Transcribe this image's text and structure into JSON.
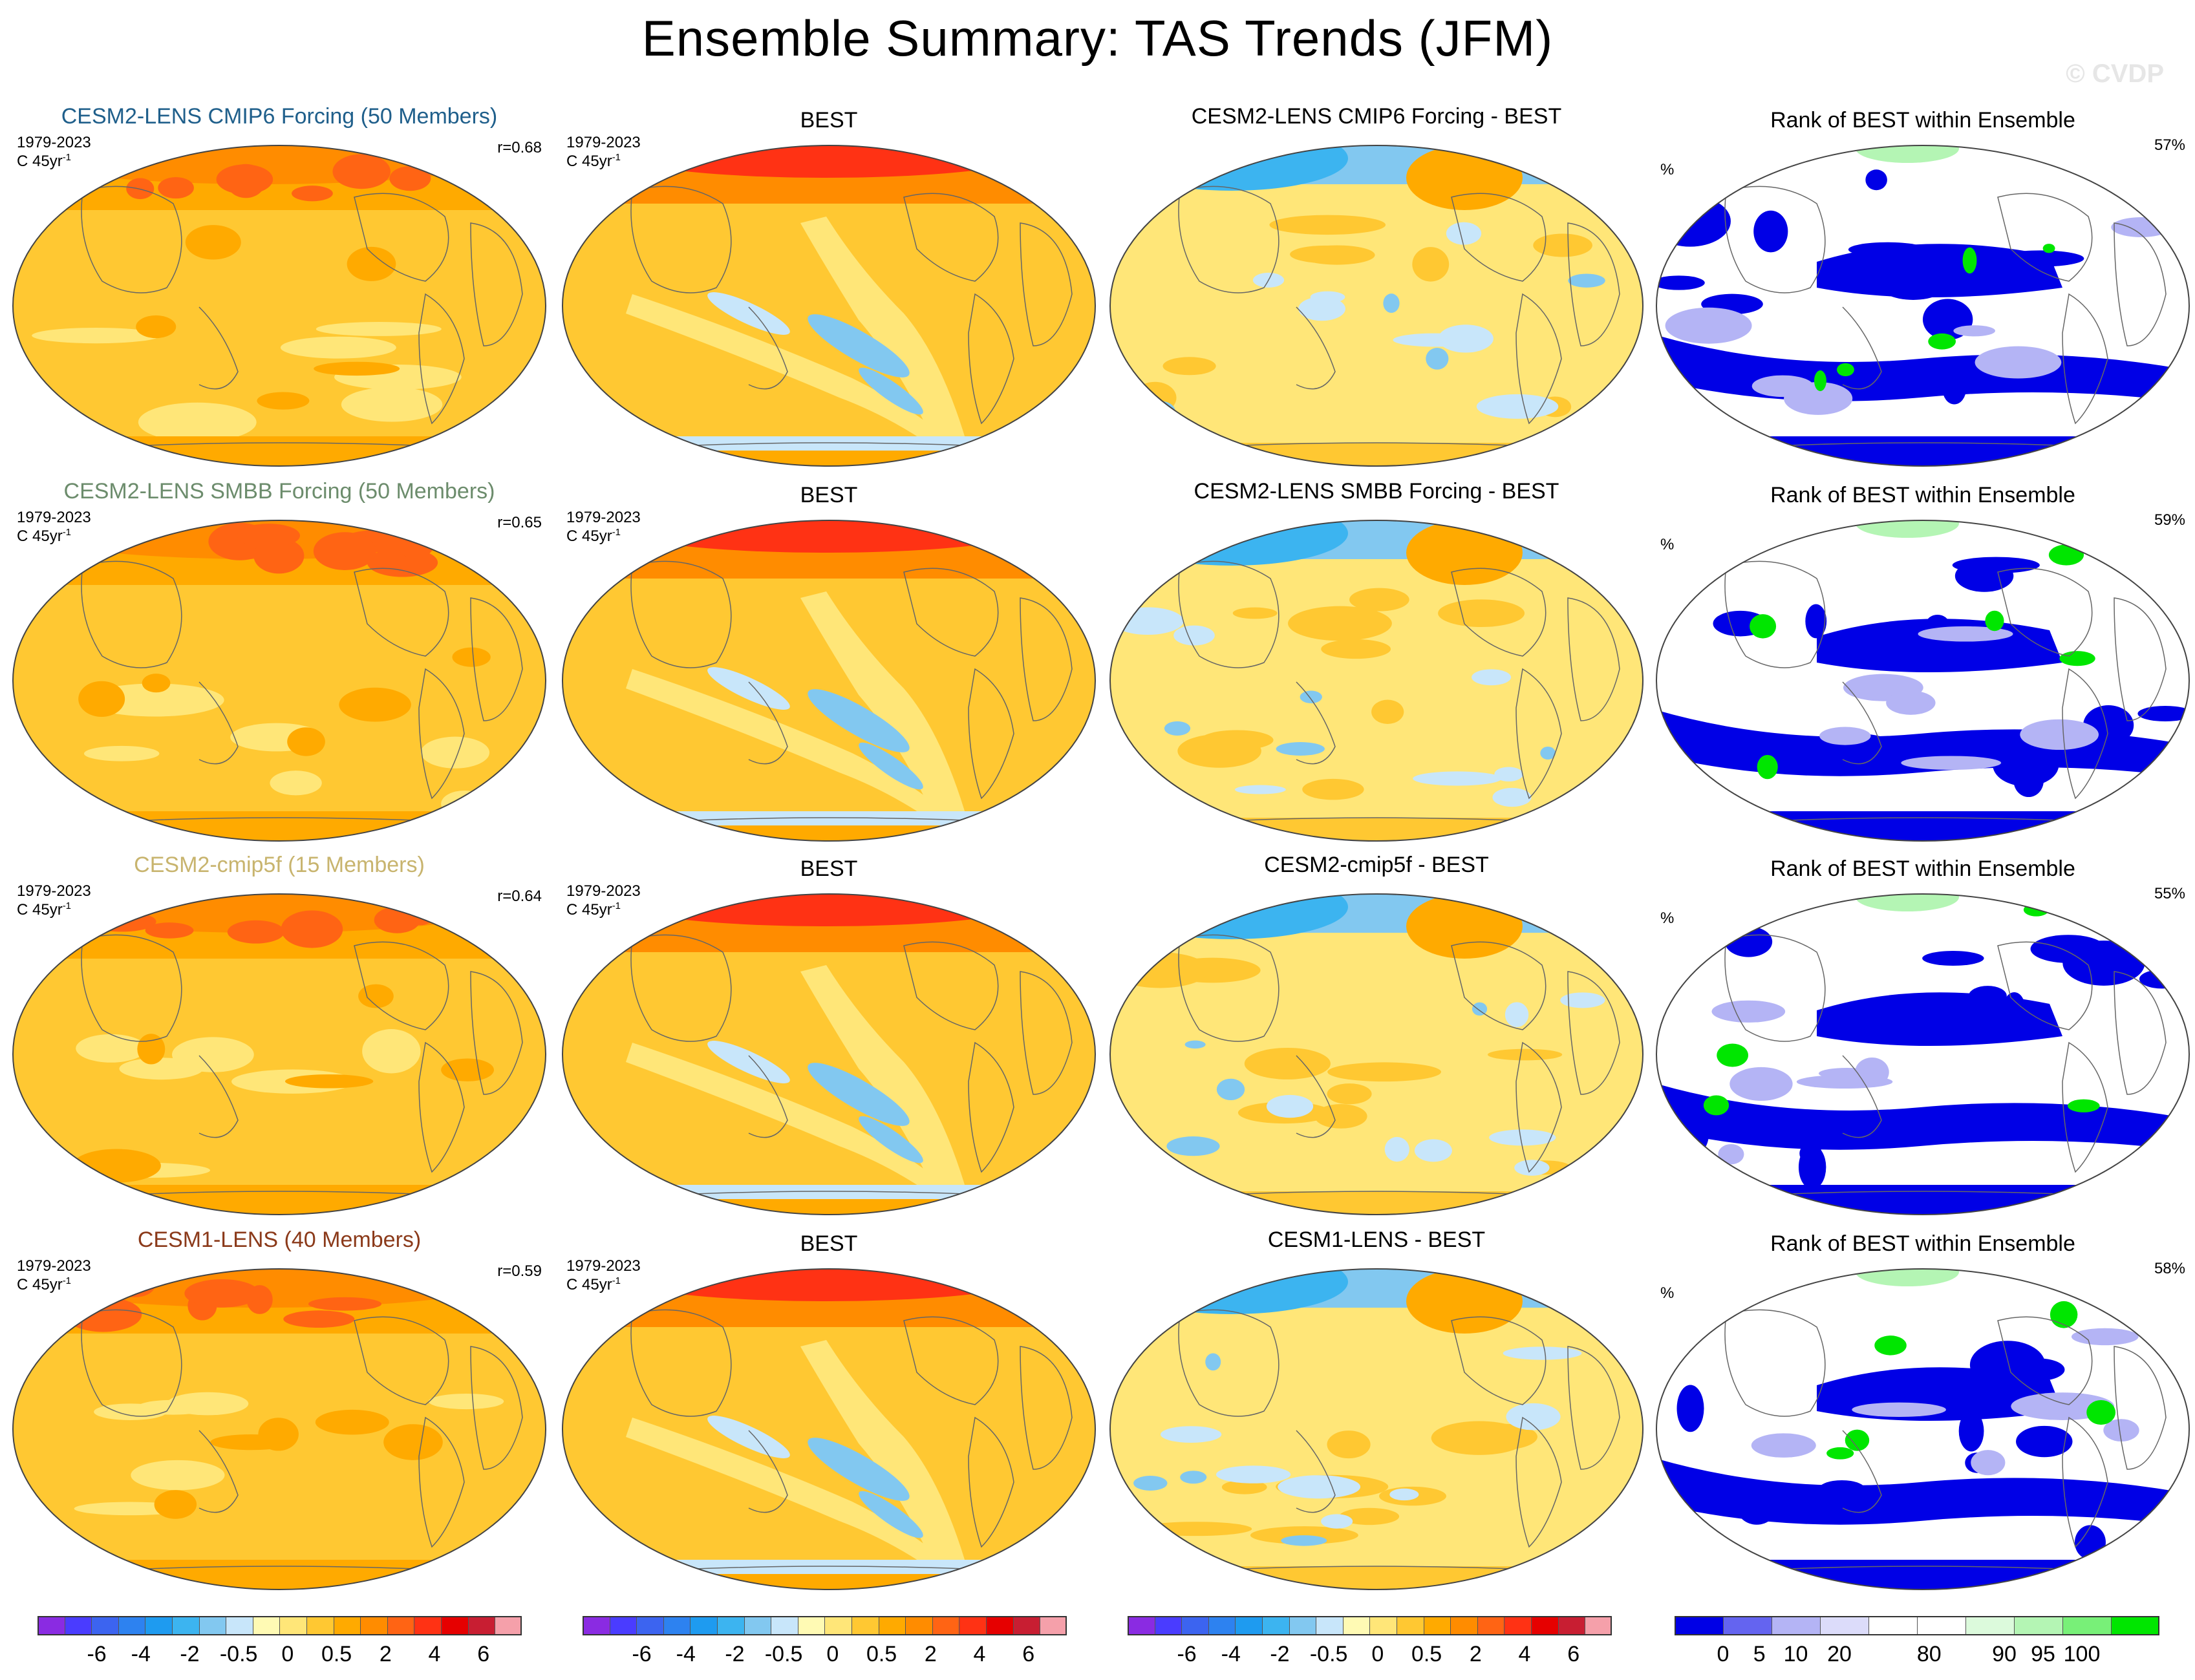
{
  "title": "Ensemble Summary: TAS Trends (JFM)",
  "watermark": "© CVDP",
  "columns": {
    "obs_title": "BEST",
    "rank_title": "Rank of BEST within Ensemble",
    "rank_unit": "%"
  },
  "rows": [
    {
      "model_title": "CESM2-LENS CMIP6 Forcing (50 Members)",
      "model_title_color": "#1f5f8b",
      "period": "1979-2023",
      "units": "C 45yr",
      "units_sup": "-1",
      "r_value": "r=0.68",
      "diff_title": "CESM2-LENS CMIP6 Forcing - BEST",
      "rank_pct": "57%"
    },
    {
      "model_title": "CESM2-LENS SMBB Forcing (50 Members)",
      "model_title_color": "#6c8c6c",
      "period": "1979-2023",
      "units": "C 45yr",
      "units_sup": "-1",
      "r_value": "r=0.65",
      "diff_title": "CESM2-LENS SMBB Forcing - BEST",
      "rank_pct": "59%"
    },
    {
      "model_title": "CESM2-cmip5f (15 Members)",
      "model_title_color": "#c8b46e",
      "period": "1979-2023",
      "units": "C 45yr",
      "units_sup": "-1",
      "r_value": "r=0.64",
      "diff_title": "CESM2-cmip5f - BEST",
      "rank_pct": "55%"
    },
    {
      "model_title": "CESM1-LENS (40 Members)",
      "model_title_color": "#8b3a1a",
      "period": "1979-2023",
      "units": "C 45yr",
      "units_sup": "-1",
      "r_value": "r=0.59",
      "diff_title": "CESM1-LENS - BEST",
      "rank_pct": "58%"
    }
  ],
  "colorbars": {
    "trend": {
      "colors": [
        "#8a2be2",
        "#4a3cff",
        "#3c64f0",
        "#2d82f0",
        "#1e9bf0",
        "#3cb4f0",
        "#82c8f0",
        "#c8e6fa",
        "#fffab4",
        "#ffe678",
        "#ffc832",
        "#ffaa00",
        "#ff8c00",
        "#ff6414",
        "#ff3214",
        "#e60000",
        "#c81e32",
        "#f5a0aa"
      ],
      "labels": [
        "-6",
        "-4",
        "-2",
        "-0.5",
        "0",
        "0.5",
        "2",
        "4",
        "6"
      ]
    },
    "rank": {
      "colors": [
        "#0000e6",
        "#6464f0",
        "#b4b4f5",
        "#dcdcfa",
        "#ffffff",
        "#ffffff",
        "#dcfadc",
        "#b4f5b4",
        "#78f078",
        "#00e600"
      ],
      "labels": [
        "0",
        "5",
        "10",
        "20",
        "80",
        "90",
        "95",
        "100"
      ]
    }
  }
}
